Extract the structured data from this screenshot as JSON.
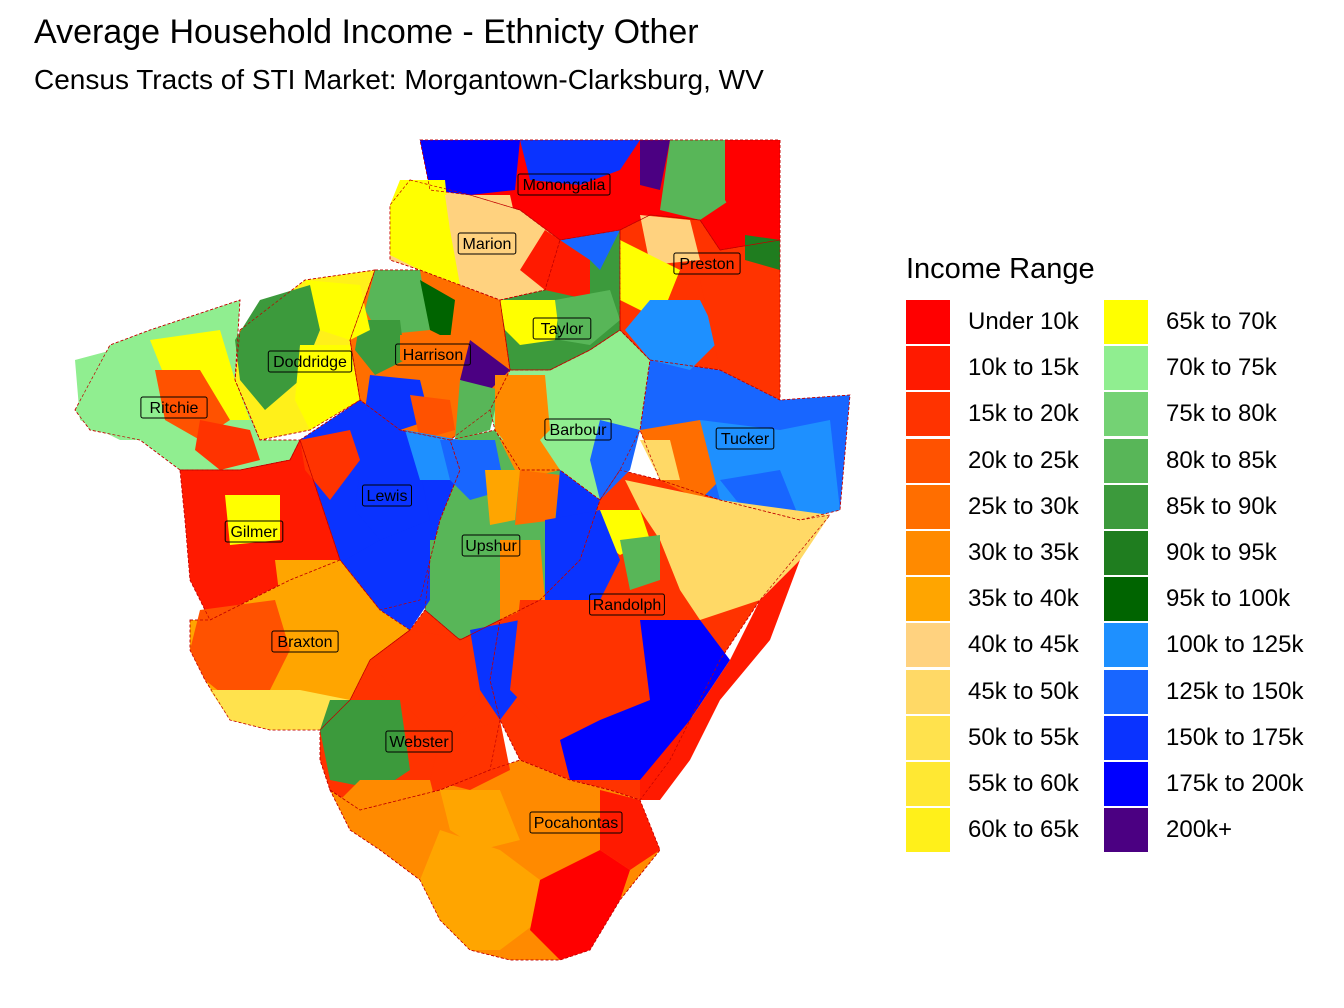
{
  "title": "Average Household Income - Ethnicty Other",
  "subtitle": "Census Tracts of STI Market: Morgantown-Clarksburg, WV",
  "legend": {
    "title": "Income Range",
    "items": [
      {
        "label": "Under 10k",
        "color": "#FF0000"
      },
      {
        "label": "10k to 15k",
        "color": "#FF1A00"
      },
      {
        "label": "15k to 20k",
        "color": "#FF3300"
      },
      {
        "label": "20k to 25k",
        "color": "#FF5200"
      },
      {
        "label": "25k to 30k",
        "color": "#FF6E00"
      },
      {
        "label": "30k to 35k",
        "color": "#FF8A00"
      },
      {
        "label": "35k to 40k",
        "color": "#FFA500"
      },
      {
        "label": "40k to 45k",
        "color": "#FFD27F"
      },
      {
        "label": "45k to 50k",
        "color": "#FFD966"
      },
      {
        "label": "50k to 55k",
        "color": "#FFE24D"
      },
      {
        "label": "55k to 60k",
        "color": "#FFE833"
      },
      {
        "label": "60k to 65k",
        "color": "#FFF01A"
      },
      {
        "label": "65k to 70k",
        "color": "#FFFF00"
      },
      {
        "label": "70k to 75k",
        "color": "#90EE90"
      },
      {
        "label": "75k to 80k",
        "color": "#74D274"
      },
      {
        "label": "80k to 85k",
        "color": "#58B658"
      },
      {
        "label": "85k to 90k",
        "color": "#3C9A3C"
      },
      {
        "label": "90k to 95k",
        "color": "#1F7D1F"
      },
      {
        "label": "95k to 100k",
        "color": "#006400"
      },
      {
        "label": "100k to 125k",
        "color": "#1E90FF"
      },
      {
        "label": "125k to 150k",
        "color": "#1866FF"
      },
      {
        "label": "150k to 175k",
        "color": "#0A33FF"
      },
      {
        "label": "175k to 200k",
        "color": "#0000FF"
      },
      {
        "label": "200k+",
        "color": "#4B0082"
      }
    ]
  },
  "counties": [
    {
      "name": "Monongalia",
      "fill": "Under 10k"
    },
    {
      "name": "Marion",
      "fill": "40k to 45k"
    },
    {
      "name": "Preston",
      "fill": "15k to 20k"
    },
    {
      "name": "Taylor",
      "fill": "85k to 90k"
    },
    {
      "name": "Harrison",
      "fill": "25k to 30k"
    },
    {
      "name": "Doddridge",
      "fill": "60k to 65k"
    },
    {
      "name": "Ritchie",
      "fill": "70k to 75k"
    },
    {
      "name": "Barbour",
      "fill": "70k to 75k"
    },
    {
      "name": "Tucker",
      "fill": "125k to 150k"
    },
    {
      "name": "Lewis",
      "fill": "150k to 175k"
    },
    {
      "name": "Gilmer",
      "fill": "10k to 15k"
    },
    {
      "name": "Upshur",
      "fill": "80k to 85k"
    },
    {
      "name": "Randolph",
      "fill": "15k to 20k"
    },
    {
      "name": "Braxton",
      "fill": "35k to 40k"
    },
    {
      "name": "Webster",
      "fill": "15k to 20k"
    },
    {
      "name": "Pocahontas",
      "fill": "30k to 35k"
    }
  ]
}
